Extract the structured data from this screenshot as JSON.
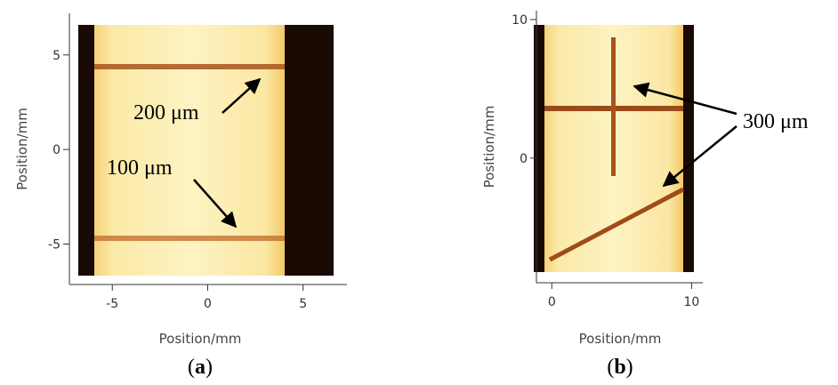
{
  "chart_data": [
    {
      "type": "image",
      "xlabel": "Position/mm",
      "ylabel": "Position/mm",
      "xlim": [
        -7.25,
        7.3
      ],
      "ylim": [
        -7.14,
        7.2
      ],
      "xticks": [
        -5,
        0,
        5
      ],
      "yticks": [
        -5,
        0,
        5
      ],
      "caption": {
        "open": "(",
        "letter": "a",
        "close": ")"
      },
      "annotations": [
        "200 μm",
        "100 μm"
      ]
    },
    {
      "type": "image",
      "xlabel": "Position/mm",
      "ylabel": "Position/mm",
      "xlim": [
        -1.1,
        10.8
      ],
      "ylim": [
        -9,
        10.64
      ],
      "xticks": [
        0,
        10
      ],
      "yticks": [
        0,
        10
      ],
      "caption": {
        "open": "(",
        "letter": "b",
        "close": ")"
      },
      "annotations": [
        "300 μm"
      ]
    }
  ]
}
